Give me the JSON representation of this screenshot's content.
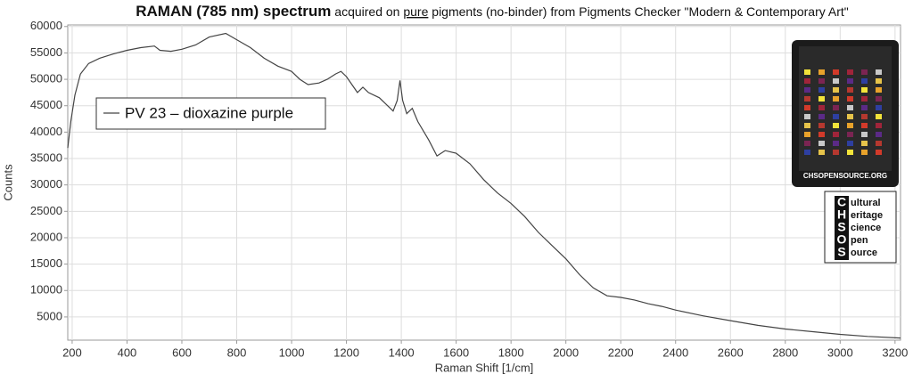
{
  "chart_data": {
    "type": "line",
    "title": {
      "bold": "RAMAN (785 nm) spectrum",
      "before": " acquired on ",
      "underlined": "pure",
      "after": " pigments (no-binder) from Pigments Checker \"Modern & Contemporary Art\""
    },
    "x_label": "Raman Shift [1/cm]",
    "y_label": "Counts",
    "xlim": [
      184,
      3220
    ],
    "ylim": [
      600,
      60300
    ],
    "xticks": [
      200,
      400,
      600,
      800,
      1000,
      1200,
      1400,
      1600,
      1800,
      2000,
      2200,
      2400,
      2600,
      2800,
      3000,
      3200
    ],
    "yticks": [
      5000,
      10000,
      15000,
      20000,
      25000,
      30000,
      35000,
      40000,
      45000,
      50000,
      55000,
      60000
    ],
    "grid": true,
    "x": [
      184,
      195,
      210,
      230,
      260,
      300,
      350,
      400,
      450,
      500,
      520,
      560,
      600,
      650,
      700,
      760,
      800,
      850,
      900,
      950,
      1000,
      1030,
      1060,
      1100,
      1130,
      1160,
      1180,
      1200,
      1220,
      1240,
      1260,
      1280,
      1320,
      1350,
      1370,
      1385,
      1395,
      1405,
      1420,
      1440,
      1460,
      1500,
      1530,
      1560,
      1600,
      1650,
      1700,
      1750,
      1800,
      1850,
      1900,
      1950,
      2000,
      2050,
      2100,
      2150,
      2200,
      2250,
      2300,
      2350,
      2400,
      2500,
      2600,
      2700,
      2800,
      2900,
      3000,
      3100,
      3220
    ],
    "series": [
      {
        "name": "PV 23 – dioxazine purple",
        "color": "#444444",
        "values": [
          37000,
          42000,
          47000,
          51000,
          53000,
          54000,
          54800,
          55500,
          56000,
          56300,
          55500,
          55300,
          55700,
          56500,
          58000,
          58700,
          57500,
          56000,
          54000,
          52500,
          51500,
          50000,
          49000,
          49300,
          50000,
          51000,
          51500,
          50500,
          49000,
          47500,
          48500,
          47500,
          46500,
          45000,
          44000,
          46000,
          49800,
          46000,
          43500,
          44500,
          42000,
          38500,
          35500,
          36500,
          36000,
          34000,
          31000,
          28500,
          26500,
          24000,
          21000,
          18500,
          16000,
          13000,
          10500,
          9000,
          8700,
          8200,
          7500,
          7000,
          6300,
          5200,
          4300,
          3400,
          2700,
          2200,
          1700,
          1300,
          1000
        ]
      }
    ],
    "legend": "upper left",
    "card_text": "CHSOPENSOURCE.ORG",
    "logo": [
      {
        "letter": "C",
        "rest": "ultural"
      },
      {
        "letter": "H",
        "rest": "eritage"
      },
      {
        "letter": "S",
        "rest": "cience"
      },
      {
        "letter": "O",
        "rest": "pen"
      },
      {
        "letter": "S",
        "rest": "ource"
      }
    ]
  }
}
